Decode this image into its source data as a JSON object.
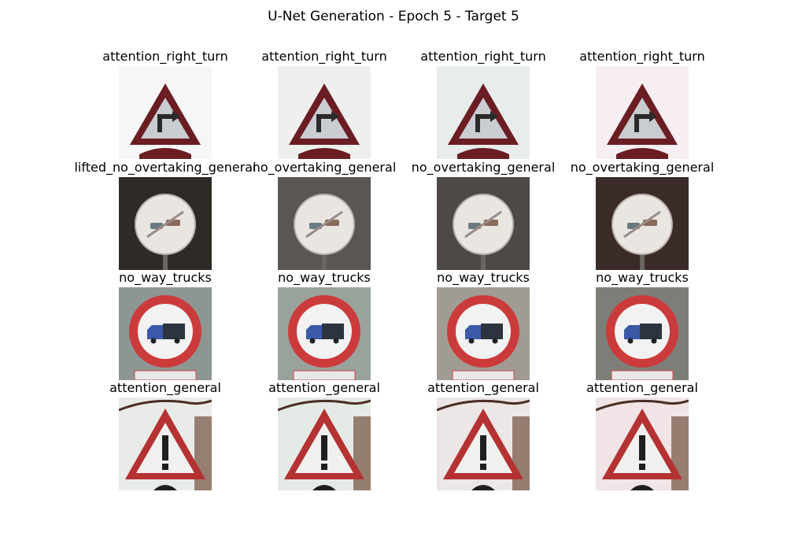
{
  "figure": {
    "title": "U-Net Generation - Epoch 5 - Target 5"
  },
  "rows": [
    {
      "sign": "triangle-curve",
      "titles": [
        "attention_right_turn",
        "attention_right_turn",
        "attention_right_turn",
        "attention_right_turn"
      ],
      "backgrounds": [
        "#f6f6f8",
        "#eef0ee",
        "#e8eceb",
        "#f7eef2"
      ]
    },
    {
      "sign": "circle-overtaking",
      "titles": [
        "lifted_no_overtaking_general",
        "no_overtaking_general",
        "no_overtaking_general",
        "no_overtaking_general"
      ],
      "backgrounds": [
        "#2e2a26",
        "#5a5652",
        "#4e4846",
        "#3a2a28"
      ]
    },
    {
      "sign": "circle-truck",
      "titles": [
        "no_way_trucks",
        "no_way_trucks",
        "no_way_trucks",
        "no_way_trucks"
      ],
      "backgrounds": [
        "#8e9694",
        "#9aa29c",
        "#a09c94",
        "#7e7e78"
      ]
    },
    {
      "sign": "triangle-exclaim",
      "titles": [
        "attention_general",
        "attention_general",
        "attention_general",
        "attention_general"
      ],
      "backgrounds": [
        "#e9ebe8",
        "#e4ebe6",
        "#ece6e6",
        "#f0e4e6"
      ]
    }
  ]
}
